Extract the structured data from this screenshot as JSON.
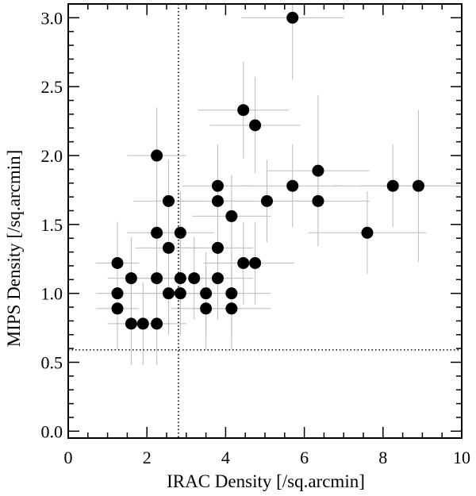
{
  "chart_data": {
    "type": "scatter",
    "xlabel": "IRAC Density [/sq.arcmin]",
    "ylabel": "MIPS Density [/sq.arcmin]",
    "xlim": [
      0,
      10
    ],
    "ylim": [
      -0.05,
      3.1
    ],
    "x_ticks": [
      0,
      2,
      4,
      6,
      8,
      10
    ],
    "x_tick_labels": [
      "0",
      "2",
      "4",
      "6",
      "8",
      "10"
    ],
    "y_ticks": [
      0.0,
      0.5,
      1.0,
      1.5,
      2.0,
      2.5,
      3.0
    ],
    "y_tick_labels": [
      "0.0",
      "0.5",
      "1.0",
      "1.5",
      "2.0",
      "2.5",
      "3.0"
    ],
    "grid": false,
    "reference_lines": {
      "vertical_x": 2.8,
      "horizontal_y": 0.59,
      "style": "dotted"
    },
    "colors": {
      "points": "#000000",
      "error_bars": "#bbbbbb",
      "axes": "#000000"
    },
    "points": [
      {
        "x": 5.7,
        "y": 3.0,
        "xerr": 1.3,
        "yerr": 0.45
      },
      {
        "x": 4.45,
        "y": 2.33,
        "xerr": 1.15,
        "yerr": 0.35
      },
      {
        "x": 4.75,
        "y": 2.22,
        "xerr": 1.15,
        "yerr": 0.35
      },
      {
        "x": 2.25,
        "y": 2.0,
        "xerr": 0.75,
        "yerr": 0.35
      },
      {
        "x": 6.35,
        "y": 1.89,
        "xerr": 1.3,
        "yerr": 0.55
      },
      {
        "x": 3.8,
        "y": 1.78,
        "xerr": 0.9,
        "yerr": 0.3
      },
      {
        "x": 5.7,
        "y": 1.78,
        "xerr": 1.3,
        "yerr": 0.3
      },
      {
        "x": 8.25,
        "y": 1.78,
        "xerr": 1.5,
        "yerr": 0.3
      },
      {
        "x": 8.9,
        "y": 1.78,
        "xerr": 1.5,
        "yerr": 0.55
      },
      {
        "x": 2.55,
        "y": 1.67,
        "xerr": 0.9,
        "yerr": 0.3
      },
      {
        "x": 3.8,
        "y": 1.67,
        "xerr": 0.9,
        "yerr": 0.3
      },
      {
        "x": 5.05,
        "y": 1.67,
        "xerr": 1.15,
        "yerr": 0.3
      },
      {
        "x": 6.35,
        "y": 1.67,
        "xerr": 1.3,
        "yerr": 0.3
      },
      {
        "x": 4.15,
        "y": 1.56,
        "xerr": 1.0,
        "yerr": 0.3
      },
      {
        "x": 2.25,
        "y": 1.44,
        "xerr": 0.75,
        "yerr": 0.3
      },
      {
        "x": 2.85,
        "y": 1.44,
        "xerr": 0.85,
        "yerr": 0.3
      },
      {
        "x": 7.6,
        "y": 1.44,
        "xerr": 1.5,
        "yerr": 0.3
      },
      {
        "x": 2.55,
        "y": 1.33,
        "xerr": 0.85,
        "yerr": 0.3
      },
      {
        "x": 3.8,
        "y": 1.33,
        "xerr": 0.9,
        "yerr": 0.3
      },
      {
        "x": 1.25,
        "y": 1.22,
        "xerr": 0.55,
        "yerr": 0.3
      },
      {
        "x": 4.45,
        "y": 1.22,
        "xerr": 1.0,
        "yerr": 0.3
      },
      {
        "x": 4.75,
        "y": 1.22,
        "xerr": 1.0,
        "yerr": 0.3
      },
      {
        "x": 1.6,
        "y": 1.11,
        "xerr": 0.6,
        "yerr": 0.3
      },
      {
        "x": 2.25,
        "y": 1.11,
        "xerr": 0.75,
        "yerr": 0.3
      },
      {
        "x": 2.85,
        "y": 1.11,
        "xerr": 0.85,
        "yerr": 0.3
      },
      {
        "x": 3.2,
        "y": 1.11,
        "xerr": 0.9,
        "yerr": 0.3
      },
      {
        "x": 3.8,
        "y": 1.11,
        "xerr": 0.9,
        "yerr": 0.3
      },
      {
        "x": 1.25,
        "y": 1.0,
        "xerr": 0.55,
        "yerr": 0.3
      },
      {
        "x": 2.55,
        "y": 1.0,
        "xerr": 0.85,
        "yerr": 0.3
      },
      {
        "x": 2.85,
        "y": 1.0,
        "xerr": 0.85,
        "yerr": 0.3
      },
      {
        "x": 3.5,
        "y": 1.0,
        "xerr": 0.9,
        "yerr": 0.3
      },
      {
        "x": 4.15,
        "y": 1.0,
        "xerr": 1.0,
        "yerr": 0.3
      },
      {
        "x": 1.25,
        "y": 0.89,
        "xerr": 0.55,
        "yerr": 0.3
      },
      {
        "x": 3.5,
        "y": 0.89,
        "xerr": 0.9,
        "yerr": 0.3
      },
      {
        "x": 4.15,
        "y": 0.89,
        "xerr": 1.0,
        "yerr": 0.3
      },
      {
        "x": 1.6,
        "y": 0.78,
        "xerr": 0.6,
        "yerr": 0.3
      },
      {
        "x": 1.9,
        "y": 0.78,
        "xerr": 0.65,
        "yerr": 0.3
      },
      {
        "x": 2.25,
        "y": 0.78,
        "xerr": 0.75,
        "yerr": 0.3
      }
    ]
  }
}
